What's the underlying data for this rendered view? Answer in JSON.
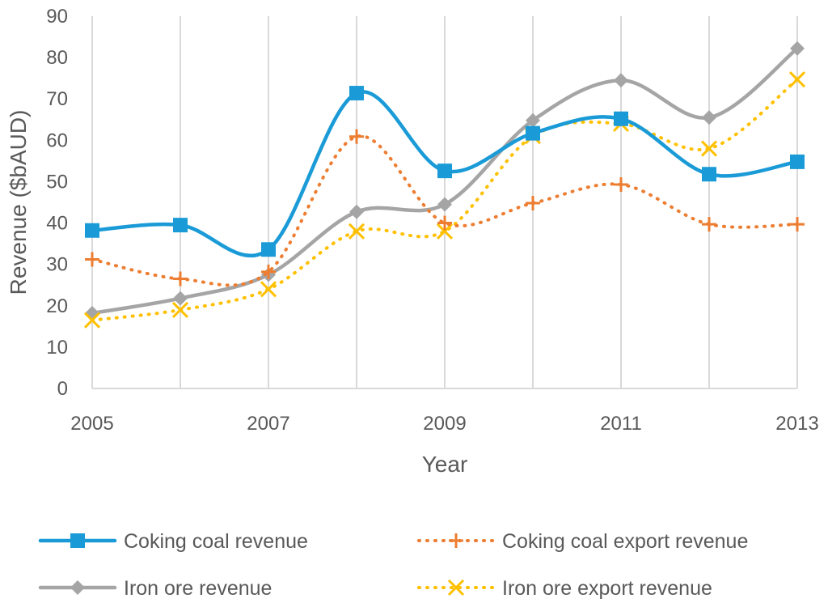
{
  "chart_data": {
    "type": "line",
    "title": "",
    "xlabel": "Year",
    "ylabel": "Revenue ($bAUD)",
    "x": [
      2005,
      2006,
      2007,
      2008,
      2009,
      2010,
      2011,
      2012,
      2013
    ],
    "x_tick_labels": [
      "2005",
      "2007",
      "2009",
      "2011",
      "2013"
    ],
    "x_tick_values": [
      2005,
      2007,
      2009,
      2011,
      2013
    ],
    "y_tick_labels": [
      "0",
      "10",
      "20",
      "30",
      "40",
      "50",
      "60",
      "70",
      "80",
      "90"
    ],
    "ylim": [
      0,
      90
    ],
    "xlim": [
      2005,
      2013
    ],
    "grid": "vertical",
    "legend_position": "bottom",
    "series": [
      {
        "name": "Coking coal revenue",
        "color": "#1a9bd7",
        "style": "solid",
        "marker": "square",
        "values": [
          38.2,
          39.5,
          33.6,
          71.4,
          52.6,
          61.7,
          65.2,
          51.8,
          54.8
        ]
      },
      {
        "name": "Coking coal export revenue",
        "color": "#ed7d31",
        "style": "dotted",
        "marker": "plus",
        "values": [
          31.2,
          26.5,
          28.2,
          60.9,
          40.0,
          44.8,
          49.3,
          39.7,
          39.7
        ]
      },
      {
        "name": "Iron ore revenue",
        "color": "#a5a5a5",
        "style": "solid",
        "marker": "diamond",
        "values": [
          18.2,
          21.8,
          27.5,
          42.7,
          44.5,
          64.8,
          74.5,
          65.5,
          82.2
        ]
      },
      {
        "name": "Iron ore export revenue",
        "color": "#ffc000",
        "style": "dotted",
        "marker": "x",
        "values": [
          16.5,
          19.0,
          24.0,
          38.0,
          38.0,
          61.0,
          64.0,
          58.0,
          74.7
        ]
      }
    ]
  }
}
